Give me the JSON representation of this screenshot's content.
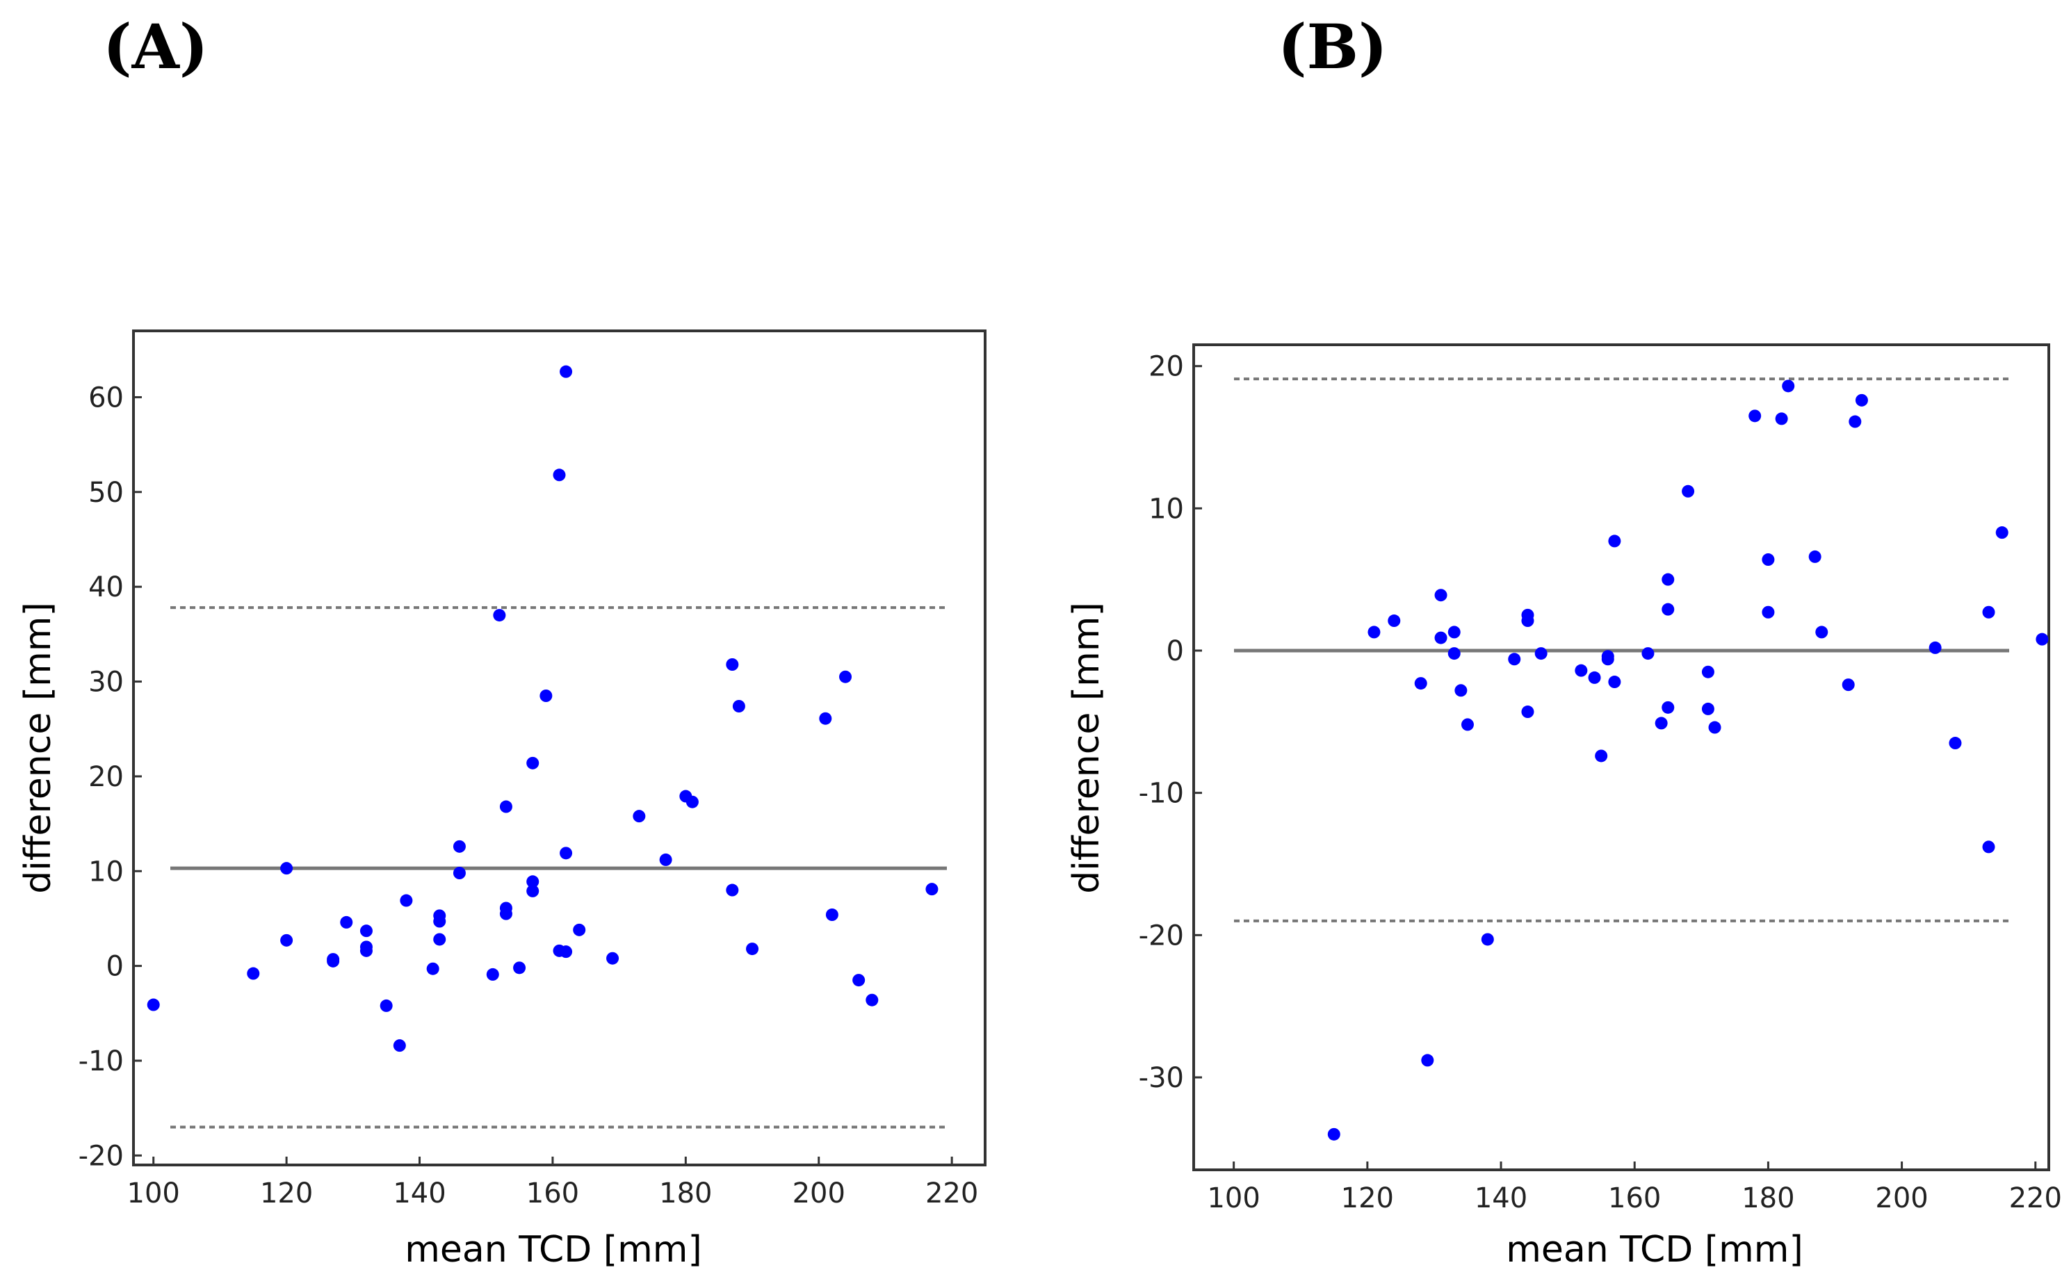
{
  "chart_data": [
    {
      "type": "scatter",
      "panel_label": "(A)",
      "title": "",
      "xlabel": "mean TCD [mm]",
      "ylabel": "difference [mm]",
      "xlim": [
        97,
        225
      ],
      "ylim": [
        -21,
        67
      ],
      "xticks": [
        100,
        120,
        140,
        160,
        180,
        200,
        220
      ],
      "yticks": [
        -20,
        -10,
        0,
        10,
        20,
        30,
        40,
        50,
        60
      ],
      "mean_difference": 10.3,
      "upper_limit_of_agreement": 37.8,
      "lower_limit_of_agreement": -17.0,
      "points": [
        {
          "x": 100,
          "y": -4.1
        },
        {
          "x": 115,
          "y": -0.8
        },
        {
          "x": 120,
          "y": 10.3
        },
        {
          "x": 120,
          "y": 2.7
        },
        {
          "x": 127,
          "y": 0.7
        },
        {
          "x": 127,
          "y": 0.5
        },
        {
          "x": 129,
          "y": 4.6
        },
        {
          "x": 132,
          "y": 3.7
        },
        {
          "x": 132,
          "y": 2.0
        },
        {
          "x": 132,
          "y": 1.6
        },
        {
          "x": 135,
          "y": -4.2
        },
        {
          "x": 137,
          "y": -8.4
        },
        {
          "x": 138,
          "y": 6.9
        },
        {
          "x": 142,
          "y": -0.3
        },
        {
          "x": 143,
          "y": 5.3
        },
        {
          "x": 143,
          "y": 4.7
        },
        {
          "x": 143,
          "y": 2.8
        },
        {
          "x": 146,
          "y": 12.6
        },
        {
          "x": 146,
          "y": 9.8
        },
        {
          "x": 151,
          "y": -0.9
        },
        {
          "x": 152,
          "y": 37.0
        },
        {
          "x": 153,
          "y": 16.8
        },
        {
          "x": 153,
          "y": 6.1
        },
        {
          "x": 153,
          "y": 5.5
        },
        {
          "x": 155,
          "y": -0.2
        },
        {
          "x": 157,
          "y": 21.4
        },
        {
          "x": 157,
          "y": 8.9
        },
        {
          "x": 157,
          "y": 7.9
        },
        {
          "x": 159,
          "y": 28.5
        },
        {
          "x": 161,
          "y": 51.8
        },
        {
          "x": 161,
          "y": 1.6
        },
        {
          "x": 162,
          "y": 62.7
        },
        {
          "x": 162,
          "y": 11.9
        },
        {
          "x": 162,
          "y": 1.5
        },
        {
          "x": 164,
          "y": 3.8
        },
        {
          "x": 169,
          "y": 0.8
        },
        {
          "x": 173,
          "y": 15.8
        },
        {
          "x": 177,
          "y": 11.2
        },
        {
          "x": 180,
          "y": 17.9
        },
        {
          "x": 181,
          "y": 17.3
        },
        {
          "x": 187,
          "y": 31.8
        },
        {
          "x": 187,
          "y": 8.0
        },
        {
          "x": 188,
          "y": 27.4
        },
        {
          "x": 190,
          "y": 1.8
        },
        {
          "x": 201,
          "y": 26.1
        },
        {
          "x": 202,
          "y": 5.4
        },
        {
          "x": 204,
          "y": 30.5
        },
        {
          "x": 206,
          "y": -1.5
        },
        {
          "x": 208,
          "y": -3.6
        },
        {
          "x": 217,
          "y": 8.1
        }
      ]
    },
    {
      "type": "scatter",
      "panel_label": "(B)",
      "title": "",
      "xlabel": "mean TCD [mm]",
      "ylabel": "difference [mm]",
      "xlim": [
        94,
        222
      ],
      "ylim": [
        -36.5,
        21.5
      ],
      "xticks": [
        100,
        120,
        140,
        160,
        180,
        200,
        220
      ],
      "yticks": [
        -30,
        -20,
        -10,
        0,
        10,
        20
      ],
      "mean_difference": 0.0,
      "upper_limit_of_agreement": 19.1,
      "lower_limit_of_agreement": -19.0,
      "points": [
        {
          "x": 115,
          "y": -34.0
        },
        {
          "x": 121,
          "y": 1.3
        },
        {
          "x": 124,
          "y": 2.1
        },
        {
          "x": 128,
          "y": -2.3
        },
        {
          "x": 129,
          "y": -28.8
        },
        {
          "x": 131,
          "y": 3.9
        },
        {
          "x": 131,
          "y": 0.9
        },
        {
          "x": 133,
          "y": 1.3
        },
        {
          "x": 133,
          "y": -0.2
        },
        {
          "x": 134,
          "y": -2.8
        },
        {
          "x": 135,
          "y": -5.2
        },
        {
          "x": 138,
          "y": -20.3
        },
        {
          "x": 142,
          "y": -0.6
        },
        {
          "x": 144,
          "y": 2.5
        },
        {
          "x": 144,
          "y": 2.1
        },
        {
          "x": 144,
          "y": -4.3
        },
        {
          "x": 146,
          "y": -0.2
        },
        {
          "x": 152,
          "y": -1.4
        },
        {
          "x": 154,
          "y": -1.9
        },
        {
          "x": 155,
          "y": -7.4
        },
        {
          "x": 156,
          "y": -0.6
        },
        {
          "x": 156,
          "y": -0.4
        },
        {
          "x": 157,
          "y": 7.7
        },
        {
          "x": 157,
          "y": -2.2
        },
        {
          "x": 162,
          "y": -0.2
        },
        {
          "x": 164,
          "y": -5.1
        },
        {
          "x": 165,
          "y": 5.0
        },
        {
          "x": 165,
          "y": 2.9
        },
        {
          "x": 165,
          "y": -4.0
        },
        {
          "x": 168,
          "y": 11.2
        },
        {
          "x": 171,
          "y": -1.5
        },
        {
          "x": 171,
          "y": -4.1
        },
        {
          "x": 172,
          "y": -5.4
        },
        {
          "x": 178,
          "y": 16.5
        },
        {
          "x": 180,
          "y": 6.4
        },
        {
          "x": 180,
          "y": 2.7
        },
        {
          "x": 182,
          "y": 16.3
        },
        {
          "x": 183,
          "y": 18.6
        },
        {
          "x": 187,
          "y": 6.6
        },
        {
          "x": 188,
          "y": 1.3
        },
        {
          "x": 192,
          "y": -2.4
        },
        {
          "x": 193,
          "y": 16.1
        },
        {
          "x": 194,
          "y": 17.6
        },
        {
          "x": 205,
          "y": 0.2
        },
        {
          "x": 208,
          "y": -6.5
        },
        {
          "x": 213,
          "y": 2.7
        },
        {
          "x": 213,
          "y": -13.8
        },
        {
          "x": 215,
          "y": 8.3
        },
        {
          "x": 221,
          "y": 0.8
        }
      ]
    }
  ]
}
